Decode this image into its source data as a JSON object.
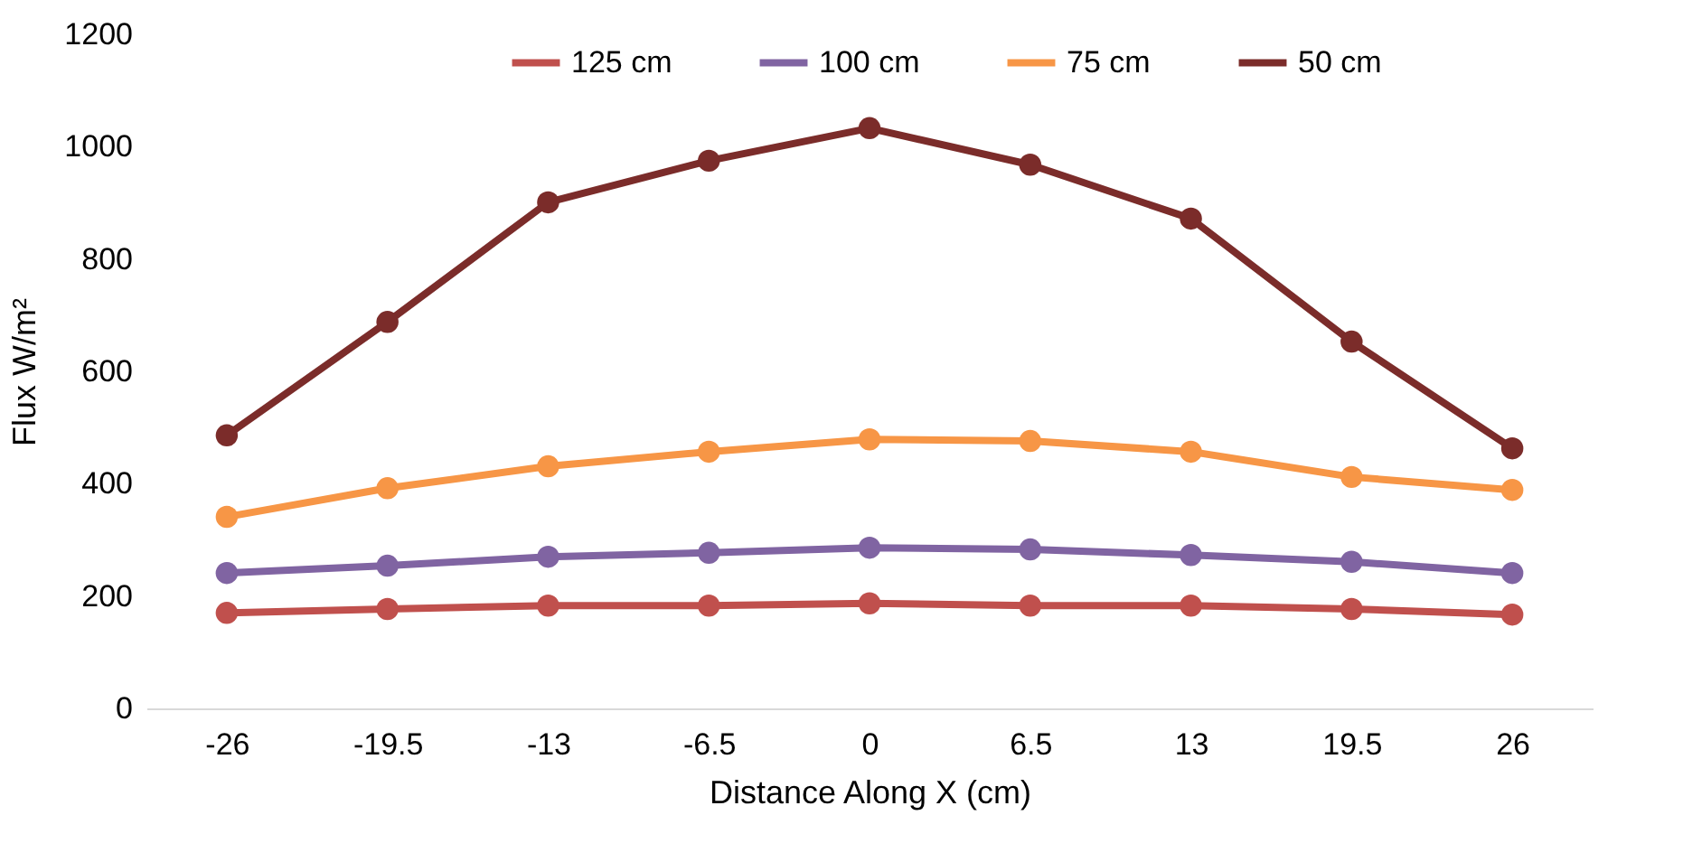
{
  "chart_data": {
    "type": "line",
    "xlabel": "Distance Along X (cm)",
    "ylabel": "Flux W/m²",
    "categories": [
      "-26",
      "-19.5",
      "-13",
      "-6.5",
      "0",
      "6.5",
      "13",
      "19.5",
      "26"
    ],
    "series": [
      {
        "name": "125 cm",
        "color": "#c0504d",
        "values": [
          170,
          177,
          183,
          183,
          187,
          183,
          183,
          177,
          167
        ]
      },
      {
        "name": "100 cm",
        "color": "#8064a2",
        "values": [
          241,
          254,
          270,
          277,
          286,
          283,
          273,
          261,
          241
        ]
      },
      {
        "name": "75 cm",
        "color": "#f79646",
        "values": [
          341,
          392,
          431,
          457,
          479,
          476,
          457,
          412,
          389
        ]
      },
      {
        "name": "50 cm",
        "color": "#7b2c2a",
        "values": [
          486,
          688,
          901,
          975,
          1033,
          968,
          872,
          653,
          463
        ]
      }
    ],
    "ylim": [
      0,
      1200
    ],
    "yticks": [
      0,
      200,
      400,
      600,
      800,
      1000,
      1200
    ],
    "grid": false,
    "legend": "top",
    "marker": "circle",
    "line_style": "solid"
  }
}
